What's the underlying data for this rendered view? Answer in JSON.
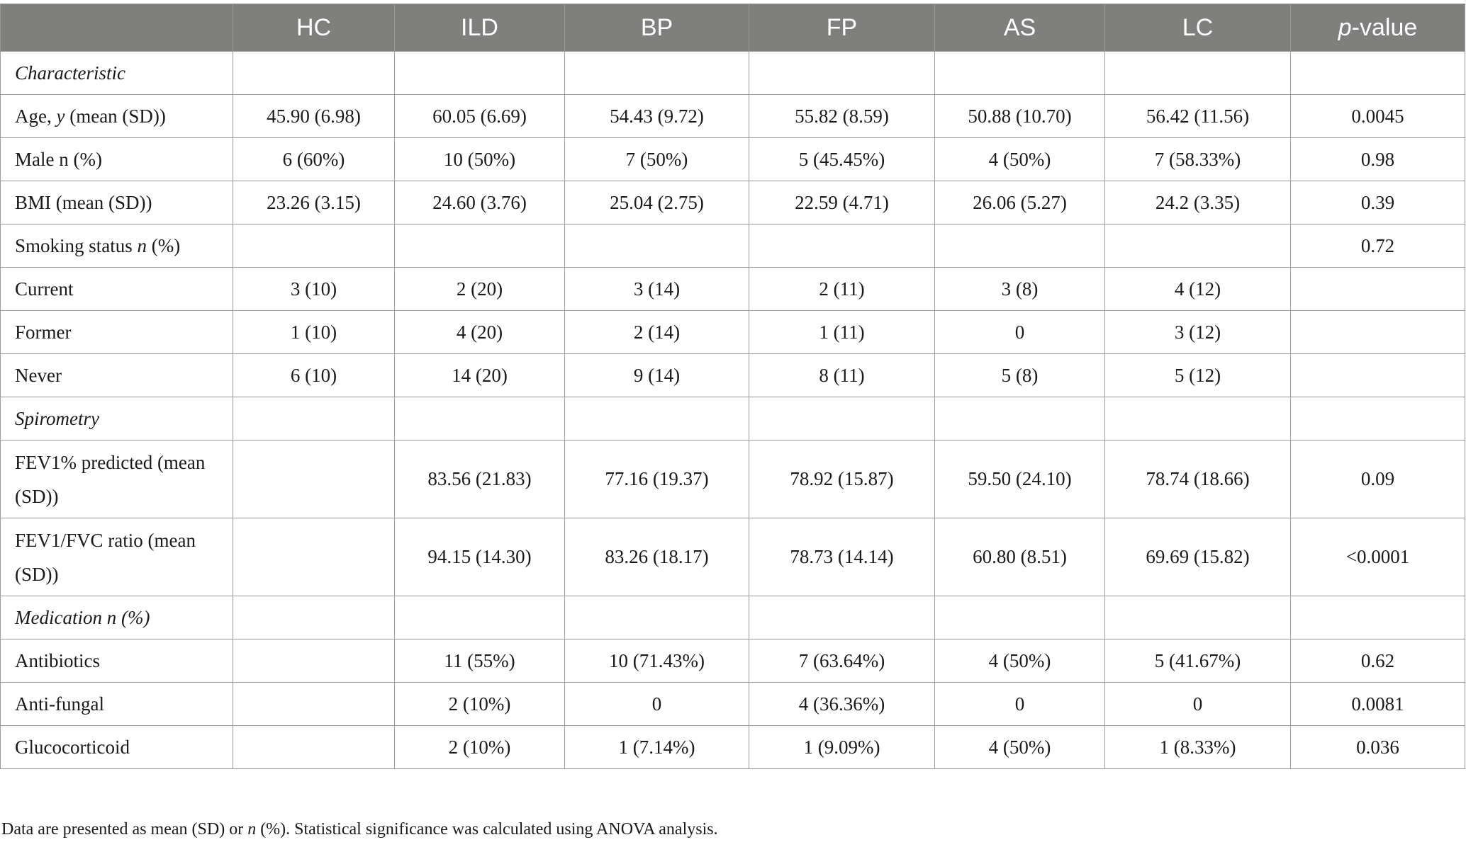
{
  "table": {
    "header": {
      "columns": [
        "HC",
        "ILD",
        "BP",
        "FP",
        "AS",
        "LC"
      ],
      "pvalue_p": "p",
      "pvalue_rest": "-value"
    },
    "rows": {
      "r0": {
        "a": "Characteristic",
        "b": "",
        "cells": [
          "",
          "",
          "",
          "",
          "",
          ""
        ],
        "p": ""
      },
      "r1": {
        "a": "Age, ",
        "i": "y",
        "b": " (mean (SD))",
        "cells": [
          "45.90 (6.98)",
          "60.05 (6.69)",
          "54.43 (9.72)",
          "55.82 (8.59)",
          "50.88 (10.70)",
          "56.42 (11.56)"
        ],
        "p": "0.0045"
      },
      "r2": {
        "a": "Male n (%)",
        "cells": [
          "6 (60%)",
          "10 (50%)",
          "7 (50%)",
          "5 (45.45%)",
          "4 (50%)",
          "7 (58.33%)"
        ],
        "p": "0.98"
      },
      "r3": {
        "a": "BMI (mean (SD))",
        "cells": [
          "23.26 (3.15)",
          "24.60 (3.76)",
          "25.04 (2.75)",
          "22.59 (4.71)",
          "26.06 (5.27)",
          "24.2 (3.35)"
        ],
        "p": "0.39"
      },
      "r4": {
        "a": "Smoking status ",
        "i": "n",
        "b": " (%)",
        "cells": [
          "",
          "",
          "",
          "",
          "",
          ""
        ],
        "p": "0.72"
      },
      "r5": {
        "a": "Current",
        "cells": [
          "3 (10)",
          "2 (20)",
          "3 (14)",
          "2 (11)",
          "3 (8)",
          "4 (12)"
        ],
        "p": ""
      },
      "r6": {
        "a": "Former",
        "cells": [
          "1 (10)",
          "4 (20)",
          "2 (14)",
          "1 (11)",
          "0",
          "3 (12)"
        ],
        "p": ""
      },
      "r7": {
        "a": "Never",
        "cells": [
          "6 (10)",
          "14 (20)",
          "9 (14)",
          "8 (11)",
          "5 (8)",
          "5 (12)"
        ],
        "p": ""
      },
      "r8": {
        "a": "Spirometry",
        "cells": [
          "",
          "",
          "",
          "",
          "",
          ""
        ],
        "p": ""
      },
      "r9": {
        "a": "FEV1% predicted (mean (SD))",
        "cells": [
          "",
          "83.56 (21.83)",
          "77.16 (19.37)",
          "78.92 (15.87)",
          "59.50 (24.10)",
          "78.74 (18.66)"
        ],
        "p": "0.09"
      },
      "r10": {
        "a": "FEV1/FVC ratio (mean (SD))",
        "cells": [
          "",
          "94.15 (14.30)",
          "83.26 (18.17)",
          "78.73 (14.14)",
          "60.80 (8.51)",
          "69.69 (15.82)"
        ],
        "p": "<0.0001"
      },
      "r11": {
        "a": "Medication ",
        "i": "n",
        "b": " (%)",
        "cells": [
          "",
          "",
          "",
          "",
          "",
          ""
        ],
        "p": ""
      },
      "r12": {
        "a": "Antibiotics",
        "cells": [
          "",
          "11 (55%)",
          "10 (71.43%)",
          "7 (63.64%)",
          "4 (50%)",
          "5 (41.67%)"
        ],
        "p": "0.62"
      },
      "r13": {
        "a": "Anti-fungal",
        "cells": [
          "",
          "2 (10%)",
          "0",
          "4 (36.36%)",
          "0",
          "0"
        ],
        "p": "0.0081"
      },
      "r14": {
        "a": "Glucocorticoid",
        "cells": [
          "",
          "2 (10%)",
          "1 (7.14%)",
          "1 (9.09%)",
          "4 (50%)",
          "1 (8.33%)"
        ],
        "p": "0.036"
      }
    }
  },
  "footnote": {
    "a": "Data are presented as mean (SD) or ",
    "i": "n",
    "b": " (%). Statistical significance was calculated using ANOVA analysis."
  },
  "colors": {
    "header_bg": "#7f807e",
    "header_text": "#ffffff",
    "border": "#9a9a9a",
    "body_text": "#1a1a1a"
  }
}
